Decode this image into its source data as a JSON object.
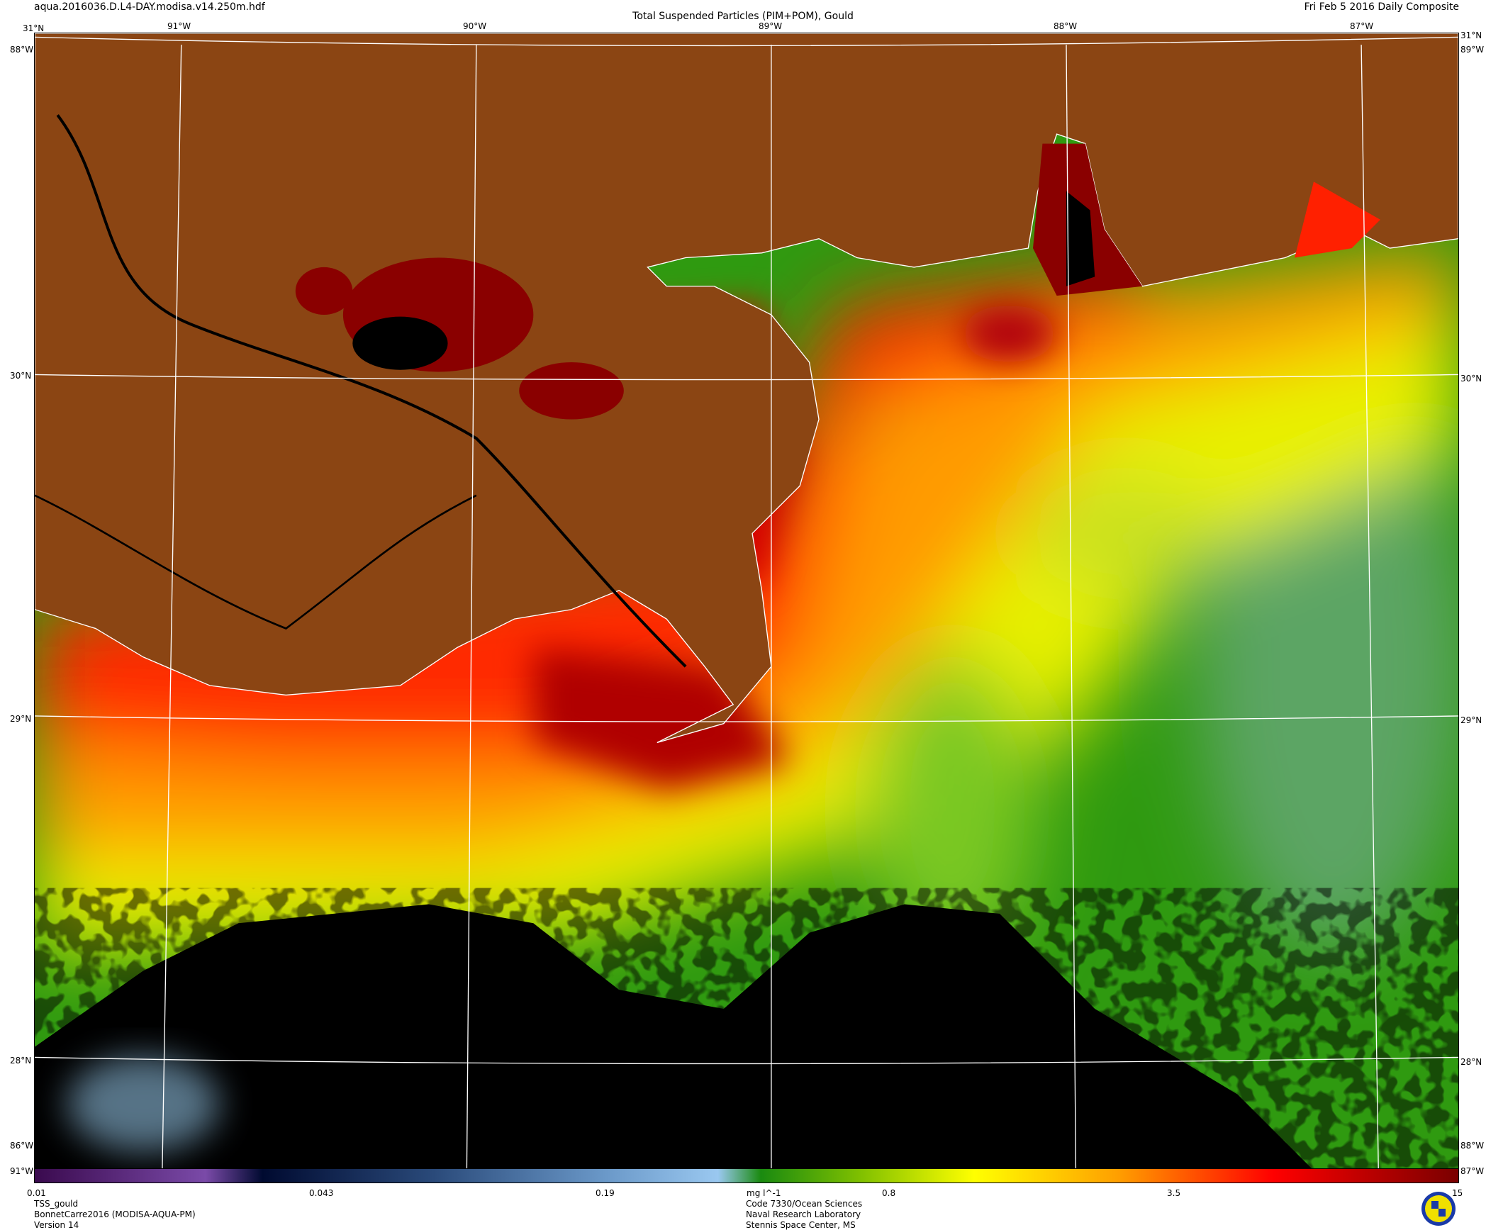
{
  "header": {
    "filename": "aqua.2016036.D.L4-DAY.modisa.v14.250m.hdf",
    "title": "Total Suspended Particles (PIM+POM), Gould",
    "date": "Fri Feb  5 2016 Daily Composite"
  },
  "axes": {
    "top_lon": [
      "91°W",
      "90°W",
      "89°W",
      "88°W",
      "87°W"
    ],
    "lat": [
      "30°N",
      "29°N",
      "28°N"
    ],
    "corner_top_left": "31°N",
    "corner_top_right": "31°N",
    "corner_left_lon": "88°W",
    "corner_right_lon": "89°W",
    "bottom_left_lon": "91°W",
    "bottom_right_lon": "87°W",
    "bottom_left_lon_upper": "86°W",
    "bottom_right_lon_upper": "88°W"
  },
  "colorbar": {
    "ticks": [
      "0.01",
      "0.043",
      "0.19",
      "0.8",
      "3.5",
      "15"
    ],
    "unit": "mg l^-1",
    "colors": [
      "#3a0a4e",
      "#7a4aa8",
      "#000a30",
      "#2a4a7a",
      "#9ac8f0",
      "#1a8a10",
      "#ffff00",
      "#ff8000",
      "#ff0000",
      "#7a0000"
    ]
  },
  "footer": {
    "left": [
      "TSS_gould",
      "BonnetCarre2016 (MODISA-AQUA-PM)",
      "Version 14"
    ],
    "center": [
      "Code 7330/Ocean Sciences",
      "Naval Research Laboratory",
      "Stennis Space Center, MS"
    ]
  },
  "colors": {
    "land": "#8b4513",
    "grid": "#ffffff",
    "cloud": "#000000"
  }
}
